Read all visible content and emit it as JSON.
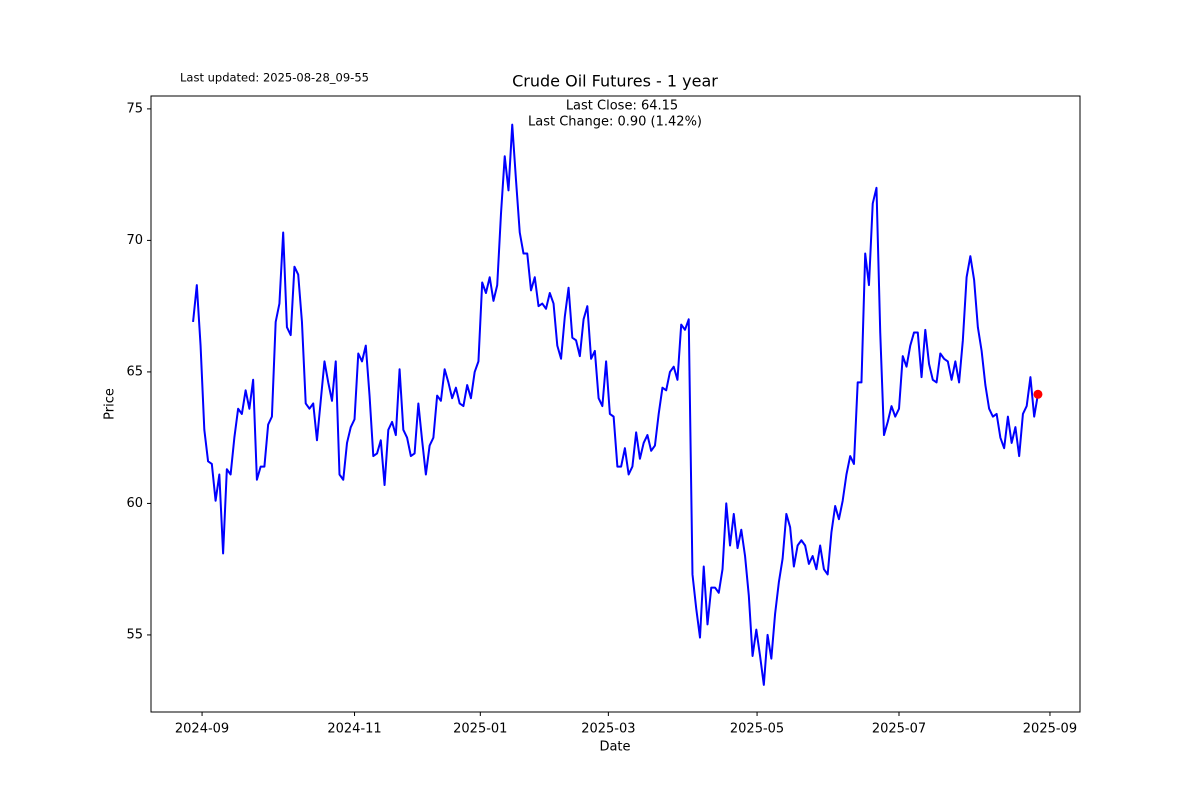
{
  "chart_data": {
    "type": "line",
    "title": "Crude Oil Futures - 1 year",
    "xlabel": "Date",
    "ylabel": "Price",
    "annotations": [
      "Last Close: 64.15",
      "Last Change: 0.90 (1.42%)"
    ],
    "updated": "Last updated: 2025-08-28_09-55",
    "series": [
      {
        "name": "Close",
        "color": "#0000ff",
        "values": [
          66.9,
          68.3,
          66.0,
          62.8,
          61.6,
          61.5,
          60.1,
          61.1,
          58.1,
          61.3,
          61.1,
          62.5,
          63.6,
          63.4,
          64.3,
          63.6,
          64.7,
          60.9,
          61.4,
          61.4,
          63.0,
          63.3,
          66.9,
          67.6,
          70.3,
          66.7,
          66.4,
          69.0,
          68.7,
          66.9,
          63.8,
          63.6,
          63.8,
          62.4,
          63.9,
          65.4,
          64.6,
          63.9,
          65.4,
          61.1,
          60.9,
          62.3,
          62.9,
          63.2,
          65.7,
          65.4,
          66.0,
          64.1,
          61.8,
          61.9,
          62.4,
          60.7,
          62.8,
          63.1,
          62.6,
          65.1,
          62.8,
          62.5,
          61.8,
          61.9,
          63.8,
          62.4,
          61.1,
          62.2,
          62.5,
          64.1,
          63.9,
          65.1,
          64.6,
          64.0,
          64.4,
          63.8,
          63.7,
          64.5,
          64.0,
          65.0,
          65.4,
          68.4,
          68.0,
          68.6,
          67.7,
          68.3,
          71.0,
          73.2,
          71.9,
          74.4,
          72.3,
          70.3,
          69.5,
          69.5,
          68.1,
          68.6,
          67.5,
          67.6,
          67.4,
          68.0,
          67.6,
          66.0,
          65.5,
          67.1,
          68.2,
          66.3,
          66.2,
          65.6,
          67.0,
          67.5,
          65.5,
          65.8,
          64.0,
          63.7,
          65.4,
          63.4,
          63.3,
          61.4,
          61.4,
          62.1,
          61.1,
          61.4,
          62.7,
          61.7,
          62.3,
          62.6,
          62.0,
          62.2,
          63.4,
          64.4,
          64.3,
          65.0,
          65.2,
          64.7,
          66.8,
          66.6,
          67.0,
          57.3,
          56.0,
          54.9,
          57.6,
          55.4,
          56.8,
          56.8,
          56.6,
          57.5,
          60.0,
          58.4,
          59.6,
          58.3,
          59.0,
          58.0,
          56.5,
          54.2,
          55.2,
          54.2,
          53.1,
          55.0,
          54.1,
          55.8,
          57.0,
          57.9,
          59.6,
          59.1,
          57.6,
          58.4,
          58.6,
          58.4,
          57.7,
          58.0,
          57.5,
          58.4,
          57.5,
          57.3,
          58.9,
          59.9,
          59.4,
          60.1,
          61.1,
          61.8,
          61.5,
          64.6,
          64.6,
          69.5,
          68.3,
          71.4,
          72.0,
          66.5,
          62.6,
          63.1,
          63.7,
          63.3,
          63.6,
          65.6,
          65.2,
          66.0,
          66.5,
          66.5,
          64.8,
          66.6,
          65.3,
          64.7,
          64.6,
          65.7,
          65.5,
          65.4,
          64.7,
          65.4,
          64.6,
          66.2,
          68.6,
          69.4,
          68.5,
          66.7,
          65.8,
          64.5,
          63.6,
          63.3,
          63.4,
          62.5,
          62.1,
          63.3,
          62.3,
          62.9,
          61.8,
          63.4,
          63.7,
          64.8,
          63.3,
          64.15
        ]
      }
    ],
    "last_marker_color": "#ff0000",
    "xlim": [
      -11.2,
      236.2
    ],
    "xticks": [
      {
        "value": 2.4,
        "label": "2024-09"
      },
      {
        "value": 43,
        "label": "2024-11"
      },
      {
        "value": 76.5,
        "label": "2025-01"
      },
      {
        "value": 110.6,
        "label": "2025-03"
      },
      {
        "value": 150.2,
        "label": "2025-05"
      },
      {
        "value": 188,
        "label": "2025-07"
      },
      {
        "value": 228.2,
        "label": "2025-09"
      }
    ],
    "ylim": [
      52.07,
      75.49
    ],
    "yticks": [
      55,
      60,
      65,
      70,
      75
    ]
  }
}
